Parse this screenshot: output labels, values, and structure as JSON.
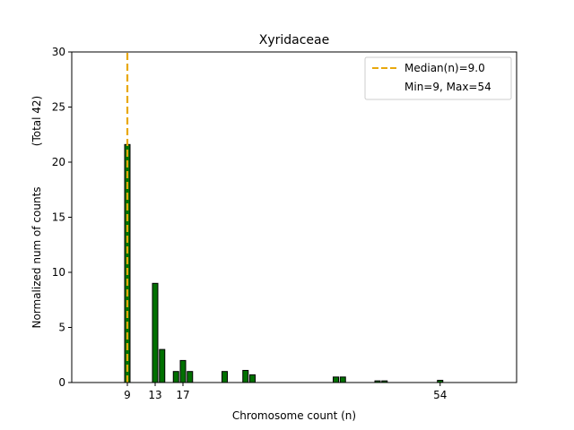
{
  "chart_data": {
    "type": "bar",
    "title": "Xyridaceae",
    "xlabel": "Chromosome count (n)",
    "ylabel": "Normalized num of counts",
    "ylabel_extra": "(Total 42)",
    "xlim": [
      1,
      65
    ],
    "ylim": [
      0,
      30
    ],
    "yticks": [
      0,
      5,
      10,
      15,
      20,
      25,
      30
    ],
    "xticks": [
      9,
      13,
      17,
      54
    ],
    "bar_color": "#007000",
    "bar_edge_color": "#000000",
    "median_color": "#e8a80c",
    "bars": [
      {
        "x": 9,
        "value": 21.6
      },
      {
        "x": 13,
        "value": 9.0
      },
      {
        "x": 14,
        "value": 3.0
      },
      {
        "x": 16,
        "value": 1.0
      },
      {
        "x": 17,
        "value": 2.0
      },
      {
        "x": 18,
        "value": 1.0
      },
      {
        "x": 23,
        "value": 1.0
      },
      {
        "x": 26,
        "value": 1.1
      },
      {
        "x": 27,
        "value": 0.7
      },
      {
        "x": 39,
        "value": 0.5
      },
      {
        "x": 40,
        "value": 0.5
      },
      {
        "x": 45,
        "value": 0.15
      },
      {
        "x": 46,
        "value": 0.15
      },
      {
        "x": 54,
        "value": 0.2
      }
    ],
    "median": 9.0,
    "legend": {
      "position": "top-right",
      "entries": [
        "Median(n)=9.0",
        "Min=9, Max=54"
      ]
    },
    "grid": false
  }
}
